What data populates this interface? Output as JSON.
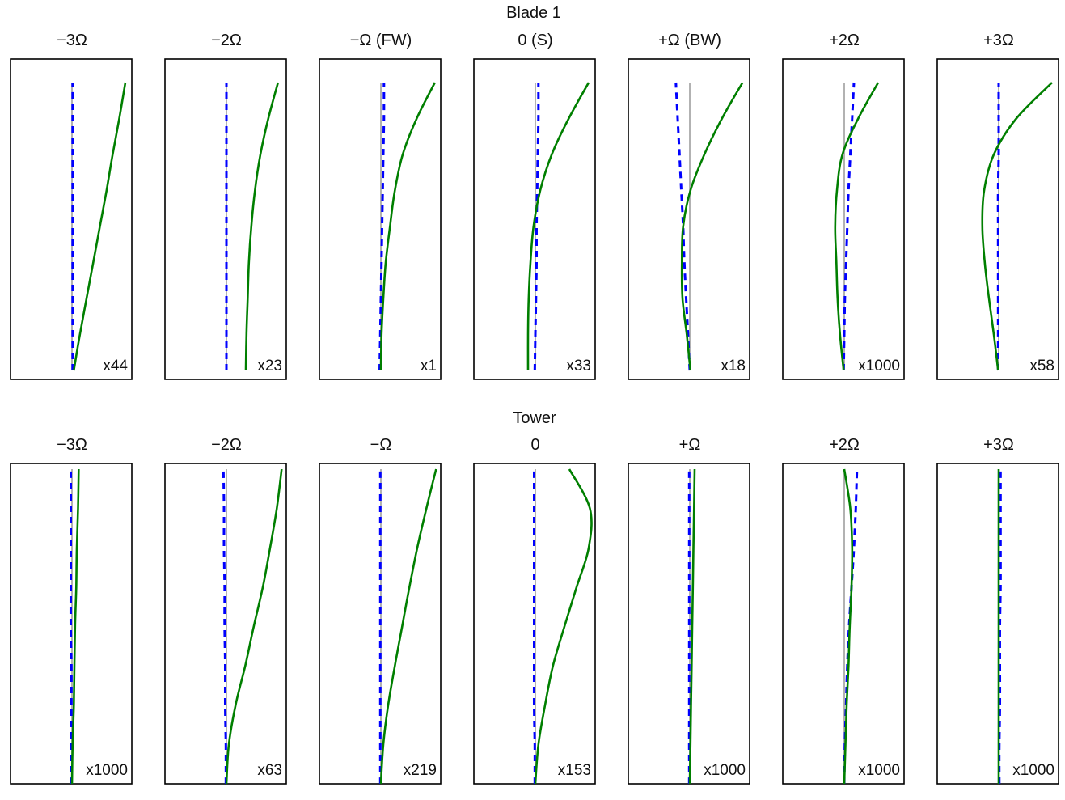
{
  "chart_data": [
    {
      "type": "line",
      "title": "Blade 1",
      "span_samples": [
        0,
        0.125,
        0.25,
        0.375,
        0.5,
        0.625,
        0.75,
        0.875,
        1
      ],
      "colors": {
        "solid": "#007f00",
        "dashed": "#0000ff",
        "reference": "#999999"
      },
      "panels": [
        {
          "title": "−3Ω",
          "scale": "x44",
          "solid": [
            0.03,
            0.13,
            0.24,
            0.35,
            0.46,
            0.57,
            0.67,
            0.78,
            0.88
          ],
          "dashed": [
            0.01,
            0.01,
            0.01,
            0.01,
            0.01,
            0.01,
            0.01,
            0.01,
            0.01
          ]
        },
        {
          "title": "−2Ω",
          "scale": "x23",
          "solid": [
            0.32,
            0.33,
            0.35,
            0.37,
            0.41,
            0.47,
            0.56,
            0.69,
            0.85
          ],
          "dashed": [
            0,
            0,
            0,
            0,
            0,
            0,
            0,
            0,
            0
          ]
        },
        {
          "title": "−Ω (FW)",
          "scale": "x1",
          "solid": [
            0,
            0.01,
            0.04,
            0.08,
            0.15,
            0.23,
            0.36,
            0.59,
            0.89
          ],
          "dashed": [
            -0.02,
            -0.01,
            0,
            0.01,
            0.02,
            0.03,
            0.04,
            0.05,
            0.05
          ]
        },
        {
          "title": "0 (S)",
          "scale": "x33",
          "solid": [
            -0.12,
            -0.12,
            -0.11,
            -0.08,
            -0.03,
            0.08,
            0.27,
            0.55,
            0.88
          ],
          "dashed": [
            -0.01,
            0,
            0.01,
            0.02,
            0.02,
            0.03,
            0.04,
            0.05,
            0.05
          ]
        },
        {
          "title": "+Ω (BW)",
          "scale": "x18",
          "solid": [
            0.01,
            -0.05,
            -0.12,
            -0.13,
            -0.11,
            0.01,
            0.24,
            0.53,
            0.87
          ],
          "dashed": [
            0,
            -0.03,
            -0.06,
            -0.09,
            -0.11,
            -0.14,
            -0.17,
            -0.2,
            -0.23
          ]
        },
        {
          "title": "+2Ω",
          "scale": "x1000",
          "solid": [
            -0.01,
            -0.07,
            -0.11,
            -0.13,
            -0.15,
            -0.12,
            -0.03,
            0.23,
            0.56
          ],
          "dashed": [
            -0.01,
            0,
            0.01,
            0.03,
            0.05,
            0.07,
            0.1,
            0.13,
            0.16
          ]
        },
        {
          "title": "+3Ω",
          "scale": "x58",
          "solid": [
            -0.01,
            -0.08,
            -0.16,
            -0.23,
            -0.27,
            -0.24,
            -0.08,
            0.29,
            0.88
          ],
          "dashed": [
            -0.01,
            -0.01,
            -0.01,
            -0.01,
            -0.01,
            -0.01,
            0,
            0,
            0
          ]
        }
      ]
    },
    {
      "type": "line",
      "title": "Tower",
      "span_samples": [
        0,
        0.125,
        0.25,
        0.375,
        0.5,
        0.625,
        0.75,
        0.875,
        1
      ],
      "colors": {
        "solid": "#007f00",
        "dashed": "#0000ff",
        "reference": "#999999"
      },
      "panels": [
        {
          "title": "−3Ω",
          "scale": "x1000",
          "solid": [
            0,
            0.01,
            0.03,
            0.04,
            0.05,
            0.07,
            0.08,
            0.1,
            0.11
          ],
          "dashed": [
            -0.01,
            -0.01,
            -0.01,
            -0.01,
            -0.02,
            -0.02,
            -0.02,
            -0.02,
            -0.02
          ]
        },
        {
          "title": "−2Ω",
          "scale": "x63",
          "solid": [
            0,
            0.04,
            0.15,
            0.31,
            0.45,
            0.6,
            0.72,
            0.83,
            0.91
          ],
          "dashed": [
            -0.01,
            -0.01,
            -0.02,
            -0.02,
            -0.03,
            -0.03,
            -0.04,
            -0.04,
            -0.05
          ]
        },
        {
          "title": "−Ω",
          "scale": "x219",
          "solid": [
            0,
            0.04,
            0.12,
            0.23,
            0.35,
            0.47,
            0.6,
            0.75,
            0.91
          ],
          "dashed": [
            -0.01,
            -0.01,
            -0.01,
            -0.01,
            -0.01,
            -0.01,
            -0.01,
            -0.01,
            -0.01
          ]
        },
        {
          "title": "0",
          "scale": "x153",
          "solid": [
            0,
            0.05,
            0.16,
            0.29,
            0.48,
            0.68,
            0.88,
            0.9,
            0.56
          ],
          "dashed": [
            -0.01,
            -0.01,
            -0.02,
            -0.02,
            -0.02,
            -0.02,
            -0.02,
            -0.02,
            -0.02
          ]
        },
        {
          "title": "+Ω",
          "scale": "x1000",
          "solid": [
            0,
            0.01,
            0.02,
            0.03,
            0.04,
            0.05,
            0.06,
            0.07,
            0.08
          ],
          "dashed": [
            -0.01,
            -0.01,
            -0.01,
            -0.01,
            -0.01,
            -0.01,
            -0.01,
            -0.01,
            -0.01
          ]
        },
        {
          "title": "+2Ω",
          "scale": "x1000",
          "solid": [
            0,
            0.02,
            0.04,
            0.07,
            0.09,
            0.12,
            0.13,
            0.1,
            0
          ],
          "dashed": [
            0,
            0.01,
            0.03,
            0.05,
            0.08,
            0.12,
            0.16,
            0.19,
            0.21
          ]
        },
        {
          "title": "+3Ω",
          "scale": "x1000",
          "solid": [
            0,
            0,
            0,
            0,
            0,
            0,
            0,
            0,
            0
          ],
          "dashed": [
            0.01,
            0.01,
            0.02,
            0.02,
            0.02,
            0.03,
            0.03,
            0.03,
            0.03
          ]
        }
      ]
    }
  ]
}
